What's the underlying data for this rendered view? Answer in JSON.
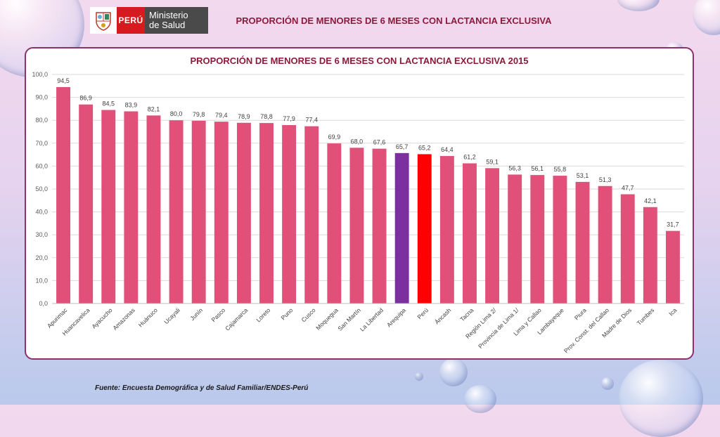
{
  "logo": {
    "country": "PERÚ",
    "ministry_line1": "Ministerio",
    "ministry_line2": "de Salud"
  },
  "header": {
    "title": "PROPORCIÓN DE MENORES DE 6 MESES CON LACTANCIA EXCLUSIVA"
  },
  "footer": {
    "source": "Fuente: Encuesta Demográfica y de Salud Familiar/ENDES-Perú"
  },
  "colors": {
    "default_bar": "#e05078",
    "highlight_purple": "#7b2fa0",
    "highlight_red": "#ff0000",
    "title": "#8b1a3b",
    "border": "#8e2f6e"
  },
  "chart_data": {
    "type": "bar",
    "title": "PROPORCIÓN DE MENORES DE 6 MESES CON LACTANCIA EXCLUSIVA 2015",
    "xlabel": "",
    "ylabel": "",
    "ylim": [
      0,
      100
    ],
    "yticks": [
      "0,0",
      "10,0",
      "20,0",
      "30,0",
      "40,0",
      "50,0",
      "60,0",
      "70,0",
      "80,0",
      "90,0",
      "100,0"
    ],
    "grid": true,
    "categories": [
      "Apurimac",
      "Huancavelica",
      "Ayacucho",
      "Amazonas",
      "Huánuco",
      "Ucayali",
      "Junín",
      "Pasco",
      "Cajamarca",
      "Loreto",
      "Puno",
      "Cusco",
      "Moquegua",
      "San Martín",
      "La Libertad",
      "Arequipa",
      "Perú",
      "Áncash",
      "Tacna",
      "Región Lima 2/",
      "Provincia de Lima 1/",
      "Lima y Callao",
      "Lambayeque",
      "Piura",
      "Prov. Const. del Callao",
      "Madre de Dios",
      "Tumbes",
      "Ica"
    ],
    "values": [
      94.5,
      86.9,
      84.5,
      83.9,
      82.1,
      80.0,
      79.8,
      79.4,
      78.9,
      78.8,
      77.9,
      77.4,
      69.9,
      68.0,
      67.6,
      65.7,
      65.2,
      64.4,
      61.2,
      59.1,
      56.3,
      56.1,
      55.8,
      53.1,
      51.3,
      47.7,
      42.1,
      31.7
    ],
    "value_labels": [
      "94,5",
      "86,9",
      "84,5",
      "83,9",
      "82,1",
      "80,0",
      "79,8",
      "79,4",
      "78,9",
      "78,8",
      "77,9",
      "77,4",
      "69,9",
      "68,0",
      "67,6",
      "65,7",
      "65,2",
      "64,4",
      "61,2",
      "59,1",
      "56,3",
      "56,1",
      "55,8",
      "53,1",
      "51,3",
      "47,7",
      "42,1",
      "31,7"
    ],
    "highlights": {
      "Arequipa": "#7b2fa0",
      "Perú": "#ff0000"
    }
  }
}
